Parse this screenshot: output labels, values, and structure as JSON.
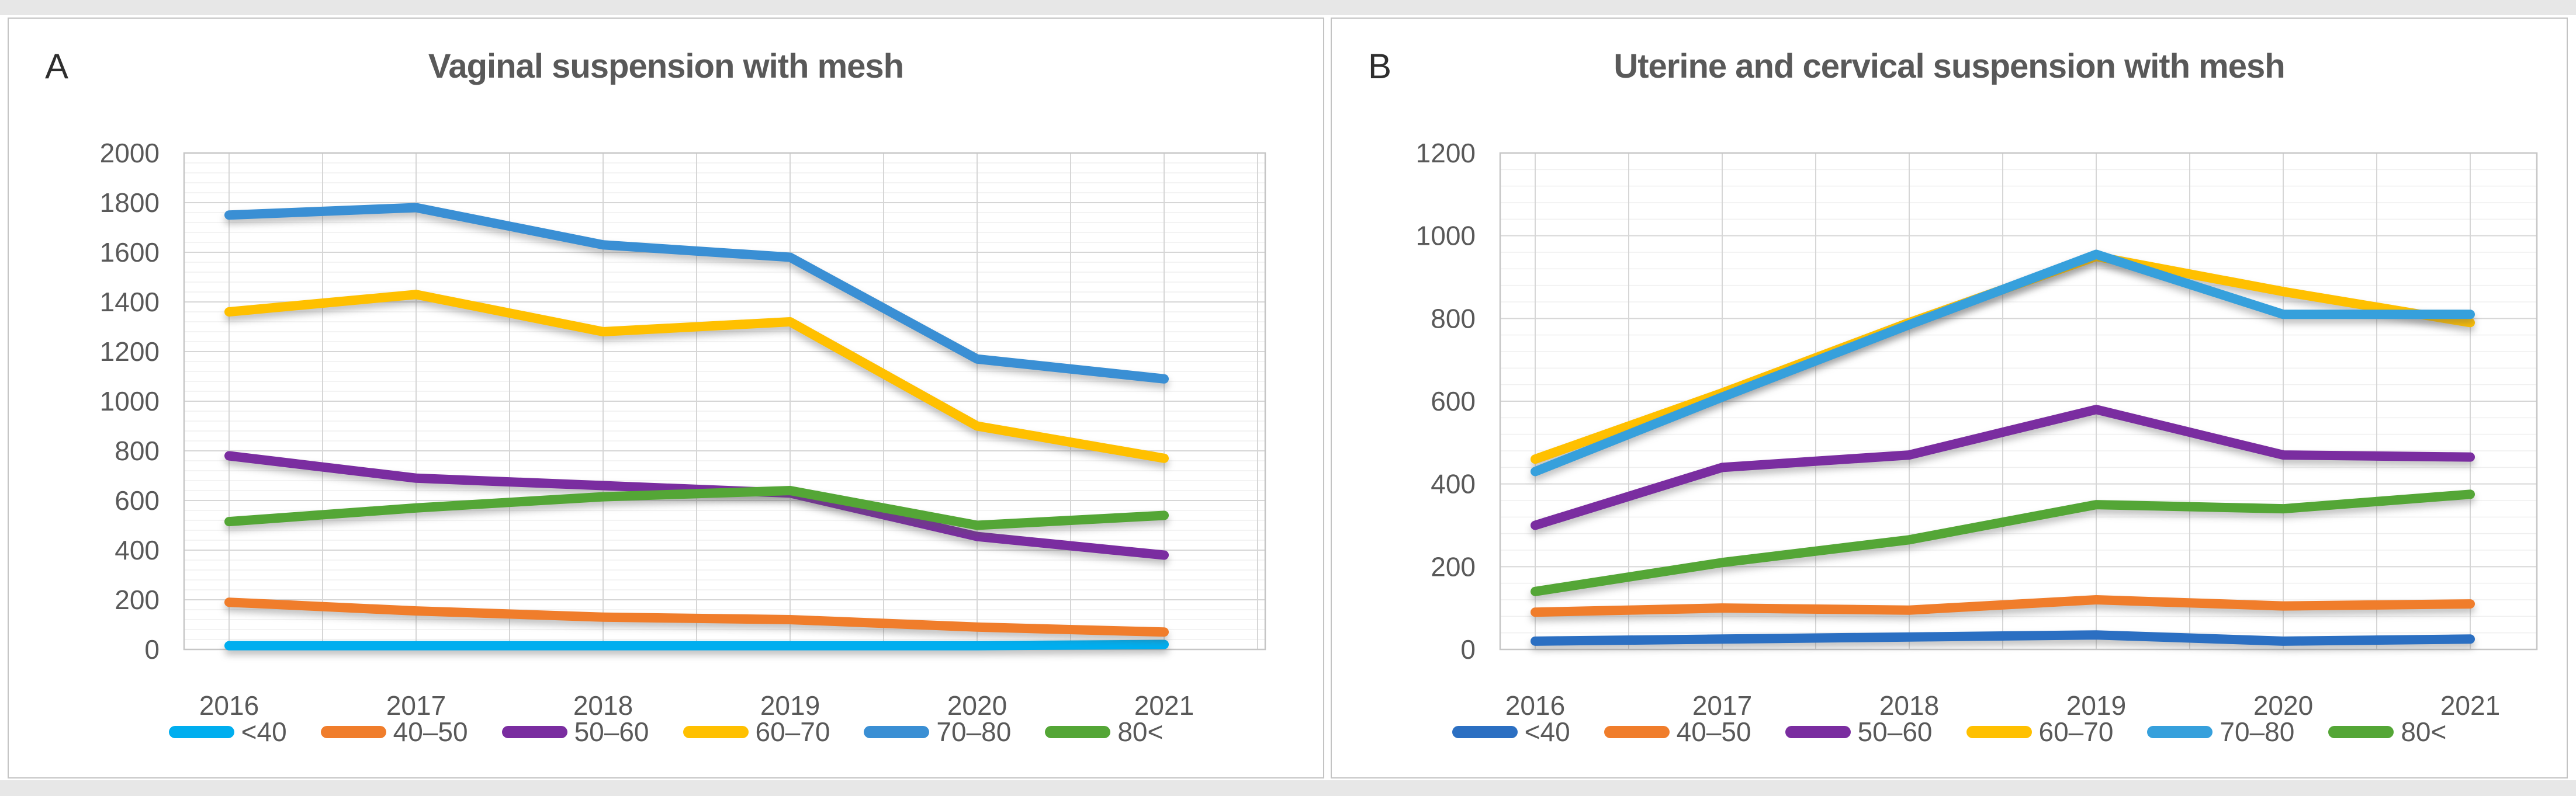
{
  "figure": {
    "panels": [
      {
        "panel_label": "A",
        "title": "Vaginal suspension with mesh",
        "chart_data": {
          "type": "line",
          "x": [
            "2016",
            "2017",
            "2018",
            "2019",
            "2020",
            "2021"
          ],
          "ylim": [
            0,
            2000
          ],
          "ytick_step": 200,
          "minor_grid_step": 40,
          "grid": true,
          "legend_position": "bottom",
          "series": [
            {
              "name": "<40",
              "color": "#00AEEF",
              "values": [
                15,
                15,
                15,
                15,
                15,
                20
              ]
            },
            {
              "name": "40–50",
              "color": "#F07D2B",
              "values": [
                190,
                155,
                130,
                120,
                90,
                70
              ]
            },
            {
              "name": "50–60",
              "color": "#7A2DA0",
              "values": [
                780,
                690,
                660,
                630,
                455,
                380
              ]
            },
            {
              "name": "60–70",
              "color": "#FFC000",
              "values": [
                1360,
                1430,
                1280,
                1320,
                900,
                770
              ]
            },
            {
              "name": "70–80",
              "color": "#3A8FD4",
              "values": [
                1750,
                1780,
                1630,
                1580,
                1170,
                1090
              ]
            },
            {
              "name": "80<",
              "color": "#54A636",
              "values": [
                515,
                570,
                615,
                640,
                500,
                540
              ]
            }
          ]
        }
      },
      {
        "panel_label": "B",
        "title": "Uterine and cervical suspension with mesh",
        "chart_data": {
          "type": "line",
          "x": [
            "2016",
            "2017",
            "2018",
            "2019",
            "2020",
            "2021"
          ],
          "ylim": [
            0,
            1200
          ],
          "ytick_step": 200,
          "minor_grid_step": 40,
          "grid": true,
          "legend_position": "bottom",
          "series": [
            {
              "name": "<40",
              "color": "#2B6FC2",
              "values": [
                20,
                25,
                30,
                35,
                20,
                25
              ]
            },
            {
              "name": "40–50",
              "color": "#F07D2B",
              "values": [
                90,
                100,
                95,
                120,
                105,
                110
              ]
            },
            {
              "name": "50–60",
              "color": "#7A2DA0",
              "values": [
                300,
                440,
                470,
                580,
                470,
                465
              ]
            },
            {
              "name": "60–70",
              "color": "#FFC000",
              "values": [
                460,
                620,
                790,
                950,
                865,
                790
              ]
            },
            {
              "name": "70–80",
              "color": "#36A0DC",
              "values": [
                430,
                610,
                785,
                955,
                810,
                810
              ]
            },
            {
              "name": "80<",
              "color": "#54A636",
              "values": [
                140,
                210,
                265,
                350,
                340,
                375
              ]
            }
          ]
        }
      }
    ]
  }
}
